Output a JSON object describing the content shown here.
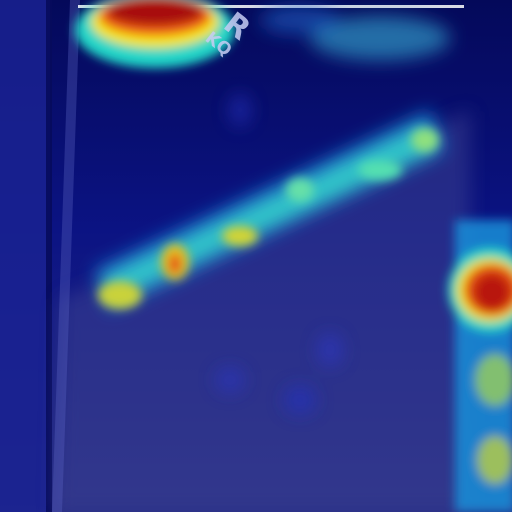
{
  "image": {
    "kind": "heatmap-overlay-photo",
    "colormap": [
      "#00007f",
      "#0000ff",
      "#00bfff",
      "#3fffbf",
      "#ffff00",
      "#ff7f00",
      "#ff0000",
      "#7f0000"
    ]
  },
  "watermark": {
    "large": "R",
    "small": "KQ"
  }
}
